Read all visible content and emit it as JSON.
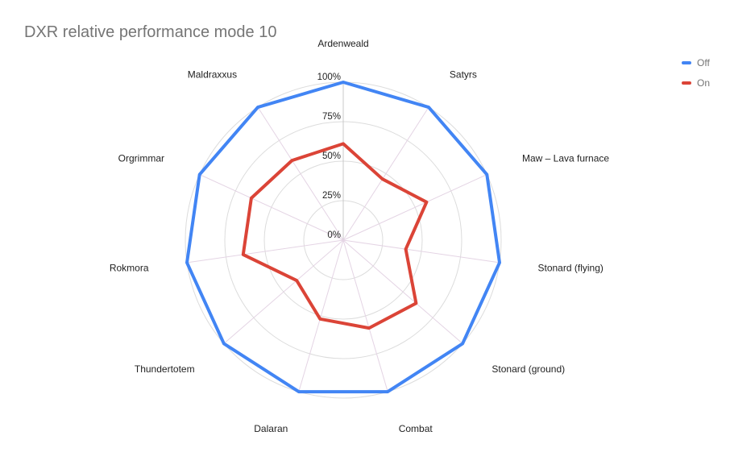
{
  "chart_data": {
    "type": "radar",
    "title": "DXR relative performance mode 10",
    "categories": [
      "Ardenweald",
      "Satyrs",
      "Maw – Lava furnace",
      "Stonard (flying)",
      "Stonard (ground)",
      "Combat",
      "Dalaran",
      "Thundertotem",
      "Rokmora",
      "Orgrimmar",
      "Maldraxxus"
    ],
    "radial_ticks": [
      "0%",
      "25%",
      "50%",
      "75%",
      "100%"
    ],
    "range": [
      0,
      100
    ],
    "legend_position": "top-right",
    "series": [
      {
        "name": "Off",
        "color": "#4285f4",
        "values": [
          100,
          100,
          100,
          100,
          100,
          100,
          100,
          100,
          100,
          100,
          100
        ]
      },
      {
        "name": "On",
        "color": "#db4437",
        "values": [
          61,
          46,
          58,
          40,
          61,
          58,
          52,
          39,
          64,
          64,
          60
        ]
      }
    ]
  }
}
